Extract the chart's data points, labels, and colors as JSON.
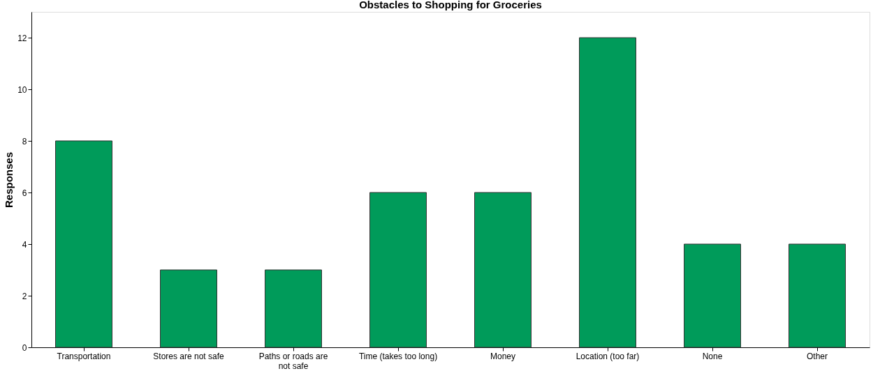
{
  "chart_data": {
    "type": "bar",
    "title": "Obstacles to Shopping for Groceries",
    "ylabel": "Responses",
    "categories": [
      "Transportation",
      "Stores are not safe",
      "Paths or roads are not safe",
      "Time (takes too long)",
      "Money",
      "Location (too far)",
      "None",
      "Other"
    ],
    "values": [
      8,
      3,
      3,
      6,
      6,
      12,
      4,
      4
    ],
    "color": "#009b5a",
    "ylim": [
      0,
      13
    ],
    "yticks": [
      0,
      2,
      4,
      6,
      8,
      10,
      12
    ],
    "grid": false
  }
}
